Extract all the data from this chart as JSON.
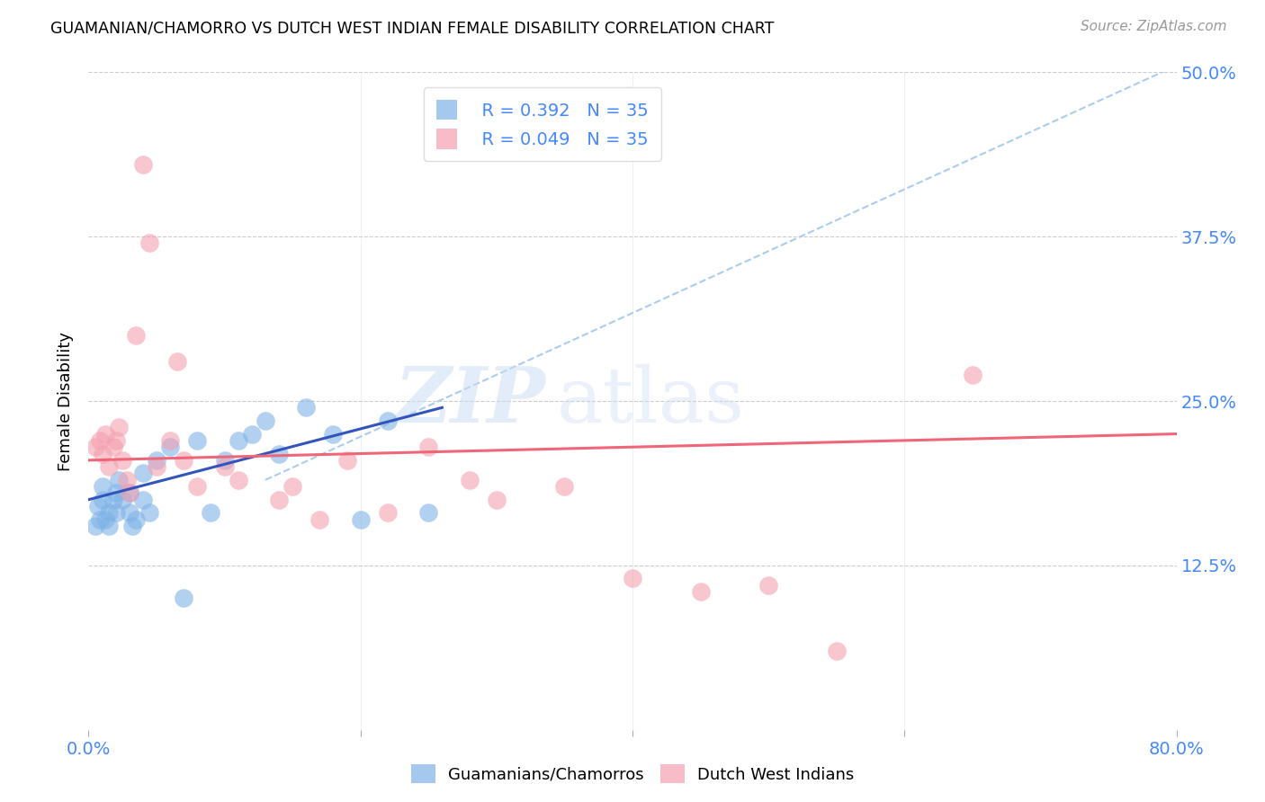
{
  "title": "GUAMANIAN/CHAMORRO VS DUTCH WEST INDIAN FEMALE DISABILITY CORRELATION CHART",
  "source": "Source: ZipAtlas.com",
  "tick_color": "#4488FF",
  "ylabel": "Female Disability",
  "xlim": [
    0.0,
    0.8
  ],
  "ylim": [
    0.0,
    0.5
  ],
  "xticks": [
    0.0,
    0.2,
    0.4,
    0.6,
    0.8
  ],
  "yticks": [
    0.0,
    0.125,
    0.25,
    0.375,
    0.5
  ],
  "ytick_labels": [
    "",
    "12.5%",
    "25.0%",
    "37.5%",
    "50.0%"
  ],
  "xtick_labels": [
    "0.0%",
    "",
    "",
    "",
    "80.0%"
  ],
  "background_color": "#ffffff",
  "grid_color": "#cccccc",
  "watermark_zip": "ZIP",
  "watermark_atlas": "atlas",
  "blue_color": "#7FB3E8",
  "pink_color": "#F4A0B0",
  "blue_line_color": "#3355BB",
  "pink_line_color": "#EE6677",
  "dashed_line_color": "#AACCEE",
  "legend_blue_R": "R = 0.392",
  "legend_blue_N": "N = 35",
  "legend_pink_R": "R = 0.049",
  "legend_pink_N": "N = 35",
  "legend_label_blue": "Guamanians/Chamorros",
  "legend_label_pink": "Dutch West Indians",
  "blue_scatter_x": [
    0.005,
    0.007,
    0.008,
    0.01,
    0.01,
    0.012,
    0.015,
    0.015,
    0.018,
    0.02,
    0.02,
    0.022,
    0.025,
    0.03,
    0.03,
    0.032,
    0.035,
    0.04,
    0.04,
    0.045,
    0.05,
    0.06,
    0.07,
    0.08,
    0.09,
    0.1,
    0.11,
    0.12,
    0.13,
    0.14,
    0.16,
    0.18,
    0.2,
    0.22,
    0.25
  ],
  "blue_scatter_y": [
    0.155,
    0.17,
    0.16,
    0.175,
    0.185,
    0.16,
    0.165,
    0.155,
    0.175,
    0.165,
    0.18,
    0.19,
    0.175,
    0.18,
    0.165,
    0.155,
    0.16,
    0.195,
    0.175,
    0.165,
    0.205,
    0.215,
    0.1,
    0.22,
    0.165,
    0.205,
    0.22,
    0.225,
    0.235,
    0.21,
    0.245,
    0.225,
    0.16,
    0.235,
    0.165
  ],
  "pink_scatter_x": [
    0.005,
    0.008,
    0.01,
    0.012,
    0.015,
    0.018,
    0.02,
    0.022,
    0.025,
    0.028,
    0.03,
    0.035,
    0.04,
    0.045,
    0.05,
    0.06,
    0.065,
    0.07,
    0.08,
    0.1,
    0.11,
    0.14,
    0.15,
    0.17,
    0.19,
    0.22,
    0.25,
    0.28,
    0.3,
    0.35,
    0.4,
    0.45,
    0.5,
    0.55,
    0.65
  ],
  "pink_scatter_y": [
    0.215,
    0.22,
    0.21,
    0.225,
    0.2,
    0.215,
    0.22,
    0.23,
    0.205,
    0.19,
    0.18,
    0.3,
    0.43,
    0.37,
    0.2,
    0.22,
    0.28,
    0.205,
    0.185,
    0.2,
    0.19,
    0.175,
    0.185,
    0.16,
    0.205,
    0.165,
    0.215,
    0.19,
    0.175,
    0.185,
    0.115,
    0.105,
    0.11,
    0.06,
    0.27
  ],
  "blue_trendline_x": [
    0.0,
    0.26
  ],
  "blue_trendline_y": [
    0.175,
    0.245
  ],
  "pink_trendline_x": [
    0.0,
    0.8
  ],
  "pink_trendline_y": [
    0.205,
    0.225
  ],
  "dashed_line_x": [
    0.13,
    0.8
  ],
  "dashed_line_y": [
    0.19,
    0.505
  ]
}
